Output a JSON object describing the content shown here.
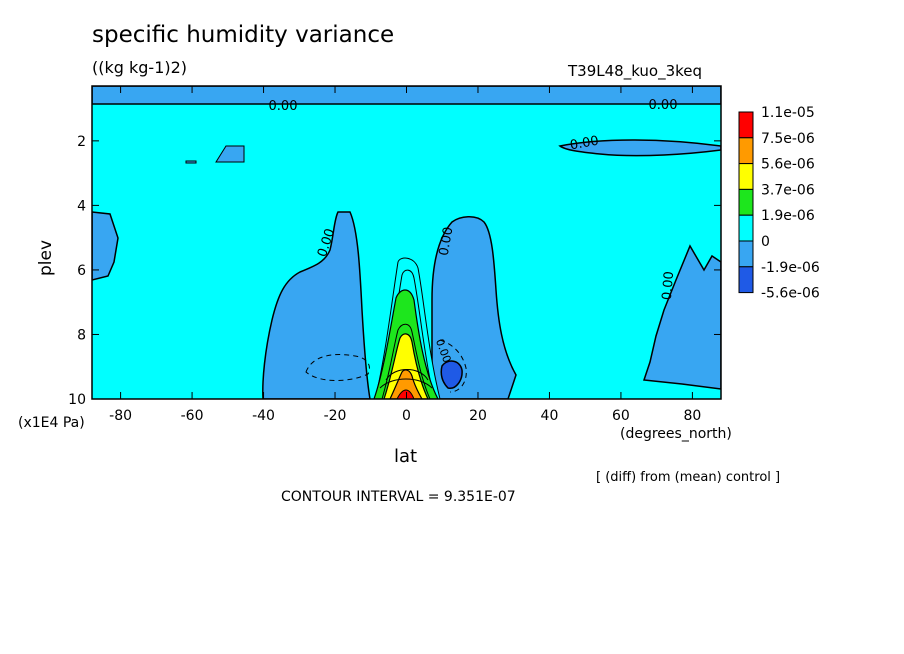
{
  "chart_data": {
    "type": "heatmap",
    "title": "specific humidity variance",
    "units": "((kg kg-1)2)",
    "run_label": "T39L48_kuo_3keq",
    "xlabel": "lat",
    "x_units": "(degrees_north)",
    "ylabel": "plev",
    "y_units": "(x1E4 Pa)",
    "x_ticks": [
      "-80",
      "-60",
      "-40",
      "-20",
      "0",
      "20",
      "40",
      "60",
      "80"
    ],
    "y_ticks": [
      "2",
      "4",
      "6",
      "8",
      "10"
    ],
    "xlim": [
      -88,
      88
    ],
    "ylim": [
      10,
      0.3
    ],
    "note": "[ (diff) from (mean) control ]",
    "contour_interval": "CONTOUR INTERVAL = 9.351E-07",
    "contour_labels": [
      "0.00",
      "0.00",
      "0.00",
      "0.00",
      "0.00",
      "0.00",
      "0.00"
    ],
    "colorbar": {
      "labels": [
        "1.1e-05",
        "7.5e-06",
        "5.6e-06",
        "3.7e-06",
        "1.9e-06",
        "0",
        "-1.9e-06",
        "-5.6e-06"
      ],
      "colors": [
        "#ff0000",
        "#ff9a00",
        "#ffff00",
        "#1de61d",
        "#00ffff",
        "#38a6f2",
        "#1f5ae6"
      ]
    },
    "regions": [
      {
        "level": "-1.9e-06",
        "color": "#38a6f2",
        "description": "upper band near plev 0.3-0.8"
      },
      {
        "level": "-1.9e-06",
        "color": "#38a6f2",
        "description": "lobes at lat -40 to -20 and 10 to 30, plev 4-10"
      },
      {
        "level": "-5.6e-06",
        "color": "#1f5ae6",
        "description": "small minimum near lat 13, plev 9.2"
      },
      {
        "level": "1.1e-05",
        "color": "#ff0000",
        "description": "maximum at lat 0, plev 10"
      }
    ]
  }
}
